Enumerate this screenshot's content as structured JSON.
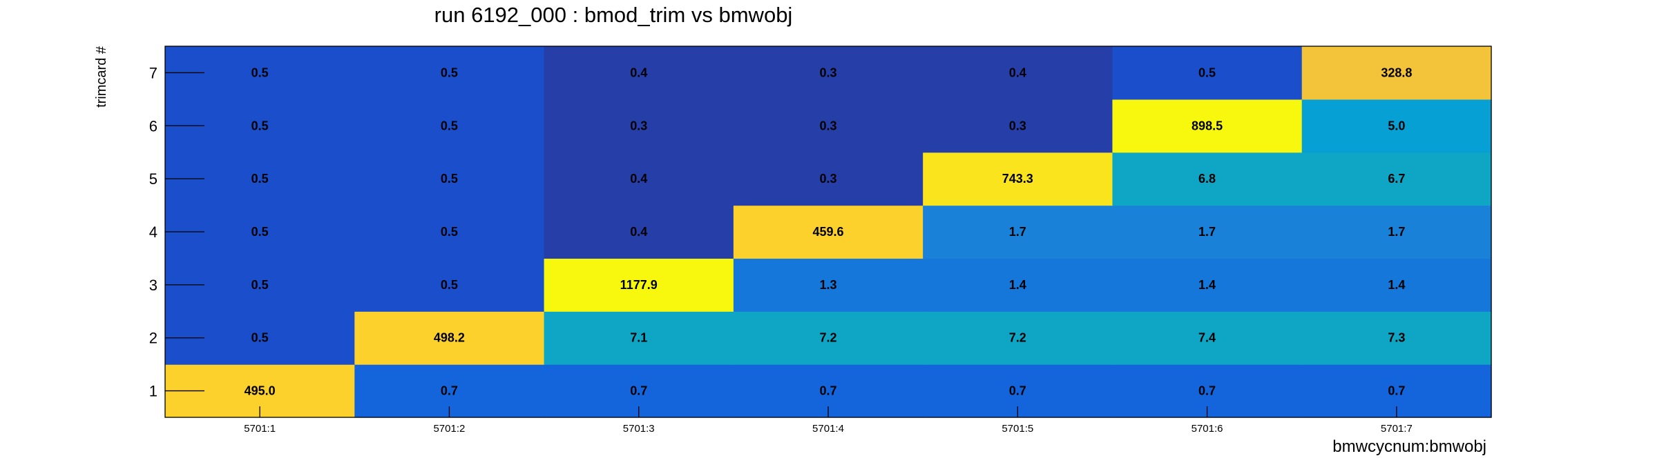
{
  "chart_data": {
    "type": "heatmap",
    "title": "run 6192_000 : bmod_trim vs bmwobj",
    "xlabel": "bmwcycnum:bmwobj",
    "ylabel": "trimcard #",
    "x_categories": [
      "5701:1",
      "5701:2",
      "5701:3",
      "5701:4",
      "5701:5",
      "5701:6",
      "5701:7"
    ],
    "y_categories": [
      "1",
      "2",
      "3",
      "4",
      "5",
      "6",
      "7"
    ],
    "values": [
      [
        495.0,
        0.7,
        0.7,
        0.7,
        0.7,
        0.7,
        0.7
      ],
      [
        0.5,
        498.2,
        7.1,
        7.2,
        7.2,
        7.4,
        7.3
      ],
      [
        0.5,
        0.5,
        1177.9,
        1.3,
        1.4,
        1.4,
        1.4
      ],
      [
        0.5,
        0.5,
        0.4,
        459.6,
        1.7,
        1.7,
        1.7
      ],
      [
        0.5,
        0.5,
        0.4,
        0.3,
        743.3,
        6.8,
        6.7
      ],
      [
        0.5,
        0.5,
        0.3,
        0.3,
        0.3,
        898.5,
        5.0
      ],
      [
        0.5,
        0.5,
        0.4,
        0.3,
        0.4,
        0.5,
        328.8
      ]
    ],
    "value_labels": [
      [
        "495.0",
        "0.7",
        "0.7",
        "0.7",
        "0.7",
        "0.7",
        "0.7"
      ],
      [
        "0.5",
        "498.2",
        "7.1",
        "7.2",
        "7.2",
        "7.4",
        "7.3"
      ],
      [
        "0.5",
        "0.5",
        "1177.9",
        "1.3",
        "1.4",
        "1.4",
        "1.4"
      ],
      [
        "0.5",
        "0.5",
        "0.4",
        "459.6",
        "1.7",
        "1.7",
        "1.7"
      ],
      [
        "0.5",
        "0.5",
        "0.4",
        "0.3",
        "743.3",
        "6.8",
        "6.7"
      ],
      [
        "0.5",
        "0.5",
        "0.3",
        "0.3",
        "0.3",
        "898.5",
        "5.0"
      ],
      [
        "0.5",
        "0.5",
        "0.4",
        "0.3",
        "0.4",
        "0.5",
        "328.8"
      ]
    ],
    "cell_colors": [
      [
        "#FCD12C",
        "#1464DC",
        "#1464DC",
        "#1464DC",
        "#1464DC",
        "#1464DC",
        "#1464DC"
      ],
      [
        "#1A4ECB",
        "#FCD12C",
        "#0EA6C4",
        "#0EA6C4",
        "#0EA6C4",
        "#0EA6C4",
        "#0EA6C4"
      ],
      [
        "#1A4ECB",
        "#1A4ECB",
        "#F8F80F",
        "#1677DA",
        "#1677DA",
        "#1677DA",
        "#1677DA"
      ],
      [
        "#1A4ECB",
        "#1A4ECB",
        "#263EA8",
        "#FCD12C",
        "#1982D8",
        "#1982D8",
        "#1982D8"
      ],
      [
        "#1A4ECB",
        "#1A4ECB",
        "#263EA8",
        "#263EA8",
        "#FAE41E",
        "#0EA6C4",
        "#0EA6C4"
      ],
      [
        "#1A4ECB",
        "#1A4ECB",
        "#263EA8",
        "#263EA8",
        "#263EA8",
        "#F8F80F",
        "#06A0D4"
      ],
      [
        "#1A4ECB",
        "#1A4ECB",
        "#263EA8",
        "#263EA8",
        "#263EA8",
        "#1A4ECB",
        "#F3C33A"
      ]
    ],
    "grid": false,
    "legend": "none"
  }
}
